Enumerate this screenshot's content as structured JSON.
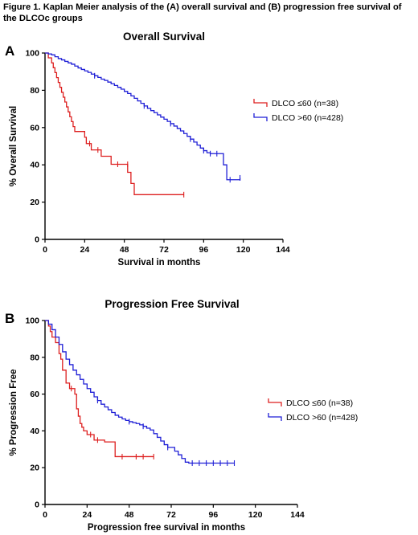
{
  "figure_title": "Figure 1. Kaplan Meier analysis of the (A) overall survival and (B) progression free survival of the DLCOc groups",
  "colors": {
    "red": "#dd1f1f",
    "blue": "#1f1fd6",
    "axis": "#000000"
  },
  "chart_data": [
    {
      "type": "line",
      "subtype": "kaplan-meier",
      "panel": "A",
      "title": "Overall Survival",
      "xlabel": "Survival in months",
      "ylabel": "% Overall Survival",
      "xlim": [
        0,
        144
      ],
      "ylim": [
        0,
        100
      ],
      "xticks": [
        "0",
        "24",
        "48",
        "72",
        "96",
        "120",
        "144"
      ],
      "yticks": [
        "0",
        "20",
        "40",
        "60",
        "80",
        "100"
      ],
      "legend_position": "right",
      "series": [
        {
          "name": "DLCO ≤60 (n=38)",
          "color": "red",
          "x": [
            0,
            2,
            4,
            5,
            6,
            7,
            8,
            9,
            10,
            11,
            12,
            13,
            14,
            15,
            16,
            17,
            18,
            20,
            21,
            22,
            24,
            25,
            27,
            28,
            30,
            32,
            34,
            37,
            40,
            44,
            48,
            50,
            52,
            54,
            84
          ],
          "y": [
            100,
            97.4,
            94.7,
            92.1,
            89.5,
            86.8,
            84.2,
            81.6,
            78.9,
            76.3,
            73.7,
            71.1,
            68.4,
            65.8,
            63.2,
            60.5,
            57.9,
            57.9,
            57.9,
            57.9,
            54.8,
            51.4,
            51.4,
            48.0,
            48.0,
            48.0,
            44.6,
            44.6,
            40.3,
            40.3,
            40.3,
            36.0,
            30.0,
            24.0,
            24.0
          ],
          "censor_x": [
            27,
            32,
            44,
            50,
            84
          ],
          "censor_y": [
            51.4,
            48.0,
            40.3,
            40.3,
            24.0
          ]
        },
        {
          "name": "DLCO >60 (n=428)",
          "color": "blue",
          "x": [
            0,
            2,
            4,
            6,
            8,
            10,
            12,
            14,
            16,
            18,
            20,
            22,
            24,
            26,
            28,
            30,
            32,
            34,
            36,
            38,
            40,
            42,
            44,
            46,
            48,
            50,
            52,
            54,
            56,
            58,
            60,
            62,
            64,
            66,
            68,
            70,
            72,
            74,
            76,
            78,
            80,
            82,
            84,
            86,
            88,
            90,
            92,
            94,
            96,
            98,
            100,
            102,
            104,
            106,
            108,
            110,
            112,
            114,
            116,
            118
          ],
          "y": [
            100,
            99.5,
            99,
            98,
            97,
            96.3,
            95.5,
            94.7,
            94,
            93,
            92,
            91.2,
            90.4,
            89.6,
            88.7,
            87.8,
            86.9,
            86,
            85.3,
            84.4,
            83.5,
            82.6,
            81.6,
            80.6,
            79.4,
            78.3,
            77,
            75.7,
            74.3,
            73,
            71.6,
            70.3,
            69.1,
            68,
            66.8,
            65.6,
            64.5,
            63.3,
            62.1,
            60.8,
            59.5,
            58.2,
            56.8,
            55.3,
            53.8,
            52.2,
            50.6,
            49,
            47.6,
            46.5,
            46,
            46,
            46,
            46,
            40,
            32,
            32,
            32,
            32,
            33
          ],
          "censor_x": [
            30,
            60,
            76,
            88,
            96,
            100,
            104,
            112,
            118
          ],
          "censor_y": [
            87.8,
            71.6,
            62.1,
            53.8,
            47.6,
            46,
            46,
            32,
            33
          ]
        }
      ]
    },
    {
      "type": "line",
      "subtype": "kaplan-meier",
      "panel": "B",
      "title": "Progression Free Survival",
      "xlabel": "Progression free survival in months",
      "ylabel": "% Progression Free",
      "xlim": [
        0,
        144
      ],
      "ylim": [
        0,
        100
      ],
      "xticks": [
        "0",
        "24",
        "48",
        "72",
        "96",
        "120",
        "144"
      ],
      "yticks": [
        "0",
        "20",
        "40",
        "60",
        "80",
        "100"
      ],
      "legend_position": "right",
      "series": [
        {
          "name": "DLCO ≤60 (n=38)",
          "color": "red",
          "x": [
            0,
            2,
            3,
            4,
            6,
            8,
            9,
            10,
            12,
            14,
            16,
            17,
            18,
            19,
            20,
            21,
            22,
            24,
            26,
            28,
            30,
            34,
            36,
            40,
            44,
            48,
            52,
            56,
            62
          ],
          "y": [
            100,
            97,
            94,
            91,
            88,
            82,
            79,
            73,
            66,
            63,
            63,
            60,
            52,
            48,
            44,
            42,
            40,
            38,
            38,
            35,
            35,
            34,
            34,
            26,
            26,
            26,
            26,
            26,
            26
          ],
          "censor_x": [
            15,
            26,
            30,
            44,
            52,
            56,
            62
          ],
          "censor_y": [
            63,
            38,
            35,
            26,
            26,
            26,
            26
          ]
        },
        {
          "name": "DLCO >60 (n=428)",
          "color": "blue",
          "x": [
            0,
            2,
            4,
            6,
            8,
            10,
            12,
            14,
            16,
            18,
            20,
            22,
            24,
            26,
            28,
            30,
            32,
            34,
            36,
            38,
            40,
            42,
            44,
            46,
            48,
            50,
            52,
            54,
            56,
            58,
            60,
            62,
            64,
            66,
            68,
            70,
            72,
            74,
            76,
            78,
            80,
            82,
            84,
            86,
            88,
            90,
            92,
            94,
            96,
            98,
            100,
            102,
            104,
            106,
            108
          ],
          "y": [
            100,
            98,
            95,
            91,
            87,
            83,
            79,
            76,
            73,
            70.5,
            68,
            65.5,
            63,
            61,
            58.5,
            56.5,
            54.5,
            53,
            51.5,
            50,
            48.5,
            47.5,
            46.5,
            45.7,
            45,
            44.5,
            44,
            43.3,
            42.5,
            41.5,
            40.5,
            38.5,
            36.5,
            34.5,
            32.5,
            31,
            31,
            29,
            27,
            25,
            23,
            22.5,
            22.5,
            22.5,
            22.5,
            22.5,
            22.5,
            22.5,
            22.5,
            22.5,
            22.5,
            22.5,
            22.5,
            22.5,
            22.5
          ],
          "censor_x": [
            30,
            48,
            56,
            70,
            84,
            88,
            92,
            96,
            100,
            104,
            108
          ],
          "censor_y": [
            56.5,
            45,
            42.5,
            31,
            22.5,
            22.5,
            22.5,
            22.5,
            22.5,
            22.5,
            22.5
          ]
        }
      ]
    }
  ]
}
